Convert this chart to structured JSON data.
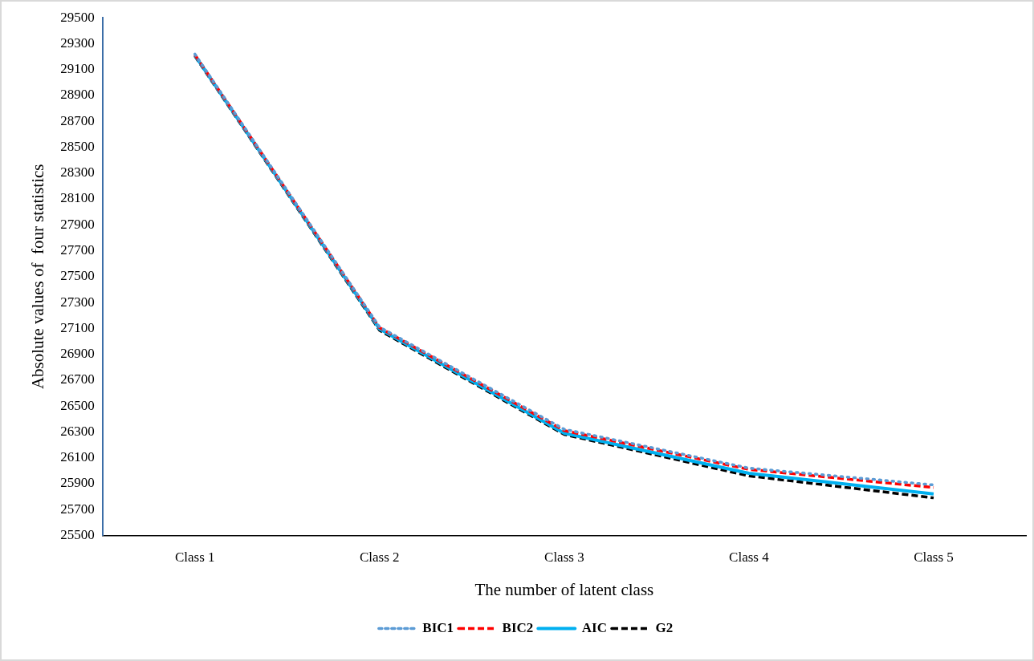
{
  "chart_data": {
    "type": "line",
    "xlabel": "The number of latent class",
    "ylabel": "Absolute values of  four statistics",
    "categories": [
      "Class 1",
      "Class 2",
      "Class 3",
      "Class 4",
      "Class 5"
    ],
    "series": [
      {
        "name": "BIC1",
        "color": "#5b9bd5",
        "line_style": "dotted",
        "values": [
          29220,
          27110,
          26320,
          26020,
          25890
        ]
      },
      {
        "name": "BIC2",
        "color": "#ff0000",
        "line_style": "dashed",
        "values": [
          29215,
          27105,
          26310,
          26010,
          25870
        ]
      },
      {
        "name": "AIC",
        "color": "#00b0f0",
        "line_style": "solid",
        "values": [
          29210,
          27095,
          26290,
          25980,
          25820
        ]
      },
      {
        "name": "G2",
        "color": "#000000",
        "line_style": "dashed",
        "values": [
          29205,
          27085,
          26280,
          25960,
          25790
        ]
      }
    ],
    "ylim": [
      25500,
      29500
    ],
    "yticks": [
      25500,
      25700,
      25900,
      26100,
      26300,
      26500,
      26700,
      26900,
      27100,
      27300,
      27500,
      27700,
      27900,
      28100,
      28300,
      28500,
      28700,
      28900,
      29100,
      29300,
      29500
    ],
    "grid": false,
    "legend": "bottom",
    "marker": "none"
  }
}
